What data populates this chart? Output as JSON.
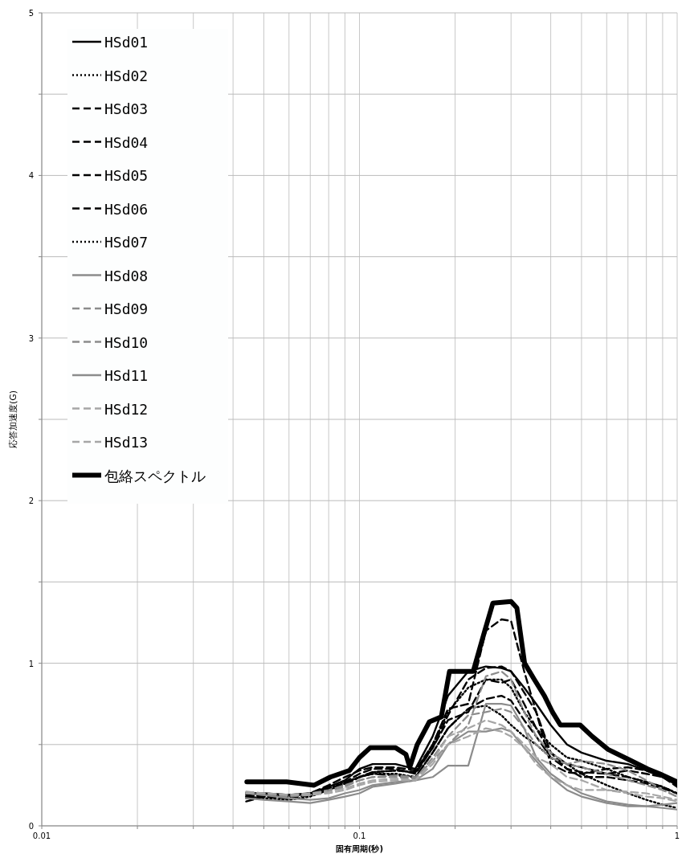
{
  "chart_data": {
    "type": "line",
    "xlabel": "固有周期(秒)",
    "ylabel": "応答加速度(G)",
    "log": "x",
    "xlim": [
      0.01,
      1
    ],
    "xticks": [
      0.01,
      {
        "value": 0.02,
        "label": null
      },
      {
        "value": 0.03,
        "label": null
      },
      {
        "value": 0.04,
        "label": null
      },
      {
        "value": 0.05,
        "label": null
      },
      {
        "value": 0.06,
        "label": null
      },
      {
        "value": 0.07,
        "label": null
      },
      {
        "value": 0.08,
        "label": null
      },
      {
        "value": 0.09,
        "label": null
      },
      0.1,
      {
        "value": 0.2,
        "label": null
      },
      {
        "value": 0.3,
        "label": null
      },
      {
        "value": 0.4,
        "label": null
      },
      {
        "value": 0.5,
        "label": null
      },
      {
        "value": 0.6,
        "label": null
      },
      {
        "value": 0.7,
        "label": null
      },
      {
        "value": 0.8,
        "label": null
      },
      {
        "value": 0.9,
        "label": null
      },
      1
    ],
    "ylim": [
      0,
      5
    ],
    "yticks": [
      0,
      {
        "value": 0.5,
        "label": null
      },
      1,
      {
        "value": 1.5,
        "label": null
      },
      2,
      {
        "value": 2.5,
        "label": null
      },
      3,
      {
        "value": 3.5,
        "label": null
      },
      4,
      {
        "value": 4.5,
        "label": null
      },
      5
    ],
    "grid": true,
    "legend": "top left",
    "x": [
      0.044,
      0.05,
      0.06,
      0.07,
      0.08,
      0.09,
      0.1,
      0.11,
      0.13,
      0.15,
      0.17,
      0.19,
      0.22,
      0.25,
      0.28,
      0.3,
      0.33,
      0.36,
      0.4,
      0.45,
      0.5,
      0.6,
      0.7,
      0.8,
      0.9,
      1.0
    ],
    "series": [
      {
        "name": "HSd01",
        "color": "#000000",
        "line_style": "solid",
        "values": [
          0.2,
          0.2,
          0.19,
          0.2,
          0.24,
          0.28,
          0.35,
          0.38,
          0.38,
          0.35,
          0.55,
          0.8,
          0.95,
          0.98,
          0.97,
          0.95,
          0.85,
          0.75,
          0.62,
          0.5,
          0.45,
          0.4,
          0.38,
          0.34,
          0.3,
          0.25
        ]
      },
      {
        "name": "HSd02",
        "color": "#000000",
        "line_style": "dotted",
        "values": [
          0.18,
          0.17,
          0.16,
          0.18,
          0.22,
          0.26,
          0.3,
          0.33,
          0.34,
          0.33,
          0.5,
          0.7,
          0.85,
          0.9,
          0.9,
          0.85,
          0.7,
          0.6,
          0.5,
          0.42,
          0.4,
          0.35,
          0.3,
          0.27,
          0.24,
          0.2
        ]
      },
      {
        "name": "HSd03",
        "color": "#000000",
        "line_style": "dashed",
        "values": [
          0.19,
          0.18,
          0.18,
          0.2,
          0.25,
          0.3,
          0.34,
          0.36,
          0.36,
          0.34,
          0.5,
          0.72,
          0.75,
          1.2,
          1.27,
          1.26,
          0.95,
          0.7,
          0.45,
          0.38,
          0.36,
          0.32,
          0.3,
          0.27,
          0.24,
          0.2
        ]
      },
      {
        "name": "HSd04",
        "color": "#000000",
        "line_style": "dashed",
        "values": [
          0.15,
          0.18,
          0.17,
          0.19,
          0.22,
          0.27,
          0.32,
          0.35,
          0.35,
          0.32,
          0.48,
          0.65,
          0.7,
          0.9,
          0.88,
          0.9,
          0.75,
          0.6,
          0.45,
          0.35,
          0.33,
          0.32,
          0.34,
          0.32,
          0.3,
          0.24
        ]
      },
      {
        "name": "HSd05",
        "color": "#000000",
        "line_style": "dashed",
        "values": [
          0.17,
          0.18,
          0.17,
          0.2,
          0.23,
          0.26,
          0.3,
          0.33,
          0.34,
          0.33,
          0.48,
          0.68,
          0.9,
          0.97,
          0.98,
          0.95,
          0.82,
          0.7,
          0.38,
          0.33,
          0.32,
          0.35,
          0.36,
          0.34,
          0.3,
          0.26
        ]
      },
      {
        "name": "HSd06",
        "color": "#000000",
        "line_style": "dashed",
        "values": [
          0.18,
          0.19,
          0.18,
          0.2,
          0.22,
          0.25,
          0.3,
          0.32,
          0.31,
          0.3,
          0.45,
          0.6,
          0.72,
          0.78,
          0.8,
          0.77,
          0.65,
          0.55,
          0.42,
          0.35,
          0.3,
          0.3,
          0.28,
          0.26,
          0.23,
          0.2
        ]
      },
      {
        "name": "HSd07",
        "color": "#000000",
        "line_style": "dotted",
        "values": [
          0.2,
          0.19,
          0.18,
          0.2,
          0.23,
          0.27,
          0.3,
          0.32,
          0.32,
          0.3,
          0.45,
          0.6,
          0.72,
          0.74,
          0.68,
          0.62,
          0.55,
          0.5,
          0.42,
          0.38,
          0.32,
          0.25,
          0.2,
          0.16,
          0.13,
          0.11
        ]
      },
      {
        "name": "HSd08",
        "color": "#8c8c8c",
        "line_style": "solid",
        "values": [
          0.17,
          0.16,
          0.15,
          0.14,
          0.16,
          0.18,
          0.2,
          0.24,
          0.26,
          0.28,
          0.3,
          0.37,
          0.37,
          0.75,
          0.75,
          0.74,
          0.6,
          0.42,
          0.32,
          0.25,
          0.2,
          0.15,
          0.13,
          0.12,
          0.11,
          0.1
        ]
      },
      {
        "name": "HSd09",
        "color": "#8c8c8c",
        "line_style": "dashed",
        "values": [
          0.2,
          0.19,
          0.18,
          0.19,
          0.21,
          0.24,
          0.28,
          0.3,
          0.3,
          0.29,
          0.42,
          0.55,
          0.68,
          0.7,
          0.72,
          0.7,
          0.6,
          0.5,
          0.42,
          0.38,
          0.36,
          0.32,
          0.28,
          0.25,
          0.22,
          0.18
        ]
      },
      {
        "name": "HSd10",
        "color": "#8c8c8c",
        "line_style": "dashed",
        "values": [
          0.21,
          0.2,
          0.19,
          0.2,
          0.22,
          0.25,
          0.28,
          0.3,
          0.31,
          0.3,
          0.4,
          0.5,
          0.62,
          0.92,
          0.95,
          0.9,
          0.7,
          0.55,
          0.45,
          0.38,
          0.4,
          0.38,
          0.34,
          0.28,
          0.22,
          0.18
        ]
      },
      {
        "name": "HSd11",
        "color": "#8c8c8c",
        "line_style": "solid",
        "values": [
          0.2,
          0.19,
          0.17,
          0.16,
          0.17,
          0.2,
          0.22,
          0.25,
          0.27,
          0.28,
          0.35,
          0.5,
          0.58,
          0.58,
          0.6,
          0.58,
          0.48,
          0.4,
          0.3,
          0.22,
          0.18,
          0.14,
          0.12,
          0.12,
          0.13,
          0.14
        ]
      },
      {
        "name": "HSd12",
        "color": "#a6a6a6",
        "line_style": "dashed",
        "values": [
          0.21,
          0.2,
          0.19,
          0.2,
          0.21,
          0.23,
          0.26,
          0.28,
          0.29,
          0.28,
          0.4,
          0.55,
          0.6,
          0.65,
          0.62,
          0.58,
          0.5,
          0.42,
          0.38,
          0.3,
          0.28,
          0.22,
          0.2,
          0.18,
          0.17,
          0.15
        ]
      },
      {
        "name": "HSd13",
        "color": "#a6a6a6",
        "line_style": "dashed",
        "values": [
          0.2,
          0.2,
          0.19,
          0.19,
          0.2,
          0.22,
          0.25,
          0.27,
          0.28,
          0.28,
          0.38,
          0.5,
          0.55,
          0.6,
          0.58,
          0.55,
          0.48,
          0.38,
          0.3,
          0.25,
          0.22,
          0.22,
          0.21,
          0.2,
          0.18,
          0.16
        ]
      },
      {
        "name": "包絡スペクトル",
        "color": "#000000",
        "line_style": "solid",
        "x": [
          0.0442,
          0.059,
          0.072,
          0.081,
          0.093,
          0.1,
          0.108,
          0.13,
          0.14,
          0.144,
          0.152,
          0.166,
          0.181,
          0.192,
          0.228,
          0.248,
          0.263,
          0.3,
          0.313,
          0.331,
          0.355,
          0.382,
          0.405,
          0.429,
          0.495,
          0.54,
          0.606,
          0.7,
          0.808,
          0.881,
          1.0
        ],
        "values": [
          0.27,
          0.27,
          0.25,
          0.3,
          0.34,
          0.42,
          0.48,
          0.48,
          0.44,
          0.36,
          0.5,
          0.64,
          0.67,
          0.95,
          0.95,
          1.2,
          1.37,
          1.38,
          1.34,
          1.0,
          0.9,
          0.8,
          0.7,
          0.62,
          0.62,
          0.55,
          0.47,
          0.41,
          0.35,
          0.32,
          0.27
        ]
      }
    ]
  }
}
